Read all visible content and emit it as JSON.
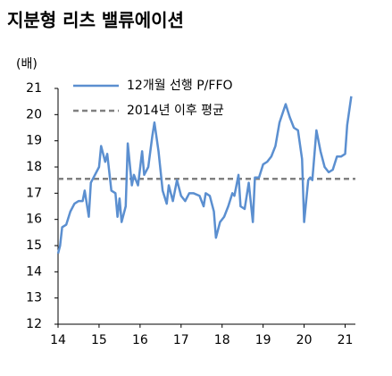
{
  "chart_data": {
    "type": "line",
    "title": "지분형 리츠 밸류에이션",
    "y_unit_label": "(배)",
    "xlim": [
      14,
      21.25
    ],
    "xticks": [
      14,
      15,
      16,
      17,
      18,
      19,
      20,
      21
    ],
    "ylim": [
      12,
      21
    ],
    "yticks": [
      12,
      13,
      14,
      15,
      16,
      17,
      18,
      19,
      20,
      21
    ],
    "grid": false,
    "legend": "upper-left",
    "series": [
      {
        "name": "12개월 선행 P/FFO",
        "color": "#5b8fd0",
        "x": [
          14.0,
          14.05,
          14.1,
          14.2,
          14.3,
          14.4,
          14.5,
          14.6,
          14.65,
          14.75,
          14.8,
          14.9,
          15.0,
          15.05,
          15.15,
          15.2,
          15.3,
          15.4,
          15.45,
          15.5,
          15.55,
          15.65,
          15.7,
          15.8,
          15.85,
          15.95,
          16.05,
          16.1,
          16.2,
          16.3,
          16.35,
          16.45,
          16.55,
          16.65,
          16.7,
          16.8,
          16.9,
          17.0,
          17.1,
          17.2,
          17.3,
          17.45,
          17.55,
          17.6,
          17.7,
          17.8,
          17.85,
          17.95,
          18.05,
          18.15,
          18.25,
          18.3,
          18.4,
          18.45,
          18.55,
          18.65,
          18.75,
          18.8,
          18.9,
          19.0,
          19.1,
          19.2,
          19.3,
          19.4,
          19.55,
          19.65,
          19.75,
          19.85,
          19.95,
          20.0,
          20.1,
          20.15,
          20.2,
          20.3,
          20.4,
          20.5,
          20.6,
          20.7,
          20.8,
          20.9,
          21.0,
          21.05,
          21.15
        ],
        "values": [
          14.7,
          15.0,
          15.7,
          15.8,
          16.3,
          16.6,
          16.7,
          16.7,
          17.1,
          16.1,
          17.4,
          17.7,
          18.0,
          18.8,
          18.2,
          18.5,
          17.1,
          17.0,
          16.1,
          16.8,
          15.9,
          16.5,
          18.9,
          17.3,
          17.7,
          17.3,
          18.6,
          17.7,
          18.0,
          19.2,
          19.7,
          18.6,
          17.1,
          16.6,
          17.3,
          16.7,
          17.5,
          16.9,
          16.7,
          17.0,
          17.0,
          16.9,
          16.5,
          17.0,
          16.9,
          16.3,
          15.3,
          15.9,
          16.1,
          16.5,
          17.0,
          16.9,
          17.7,
          16.5,
          16.4,
          17.4,
          15.9,
          17.6,
          17.6,
          18.1,
          18.2,
          18.4,
          18.8,
          19.7,
          20.4,
          19.9,
          19.5,
          19.4,
          18.3,
          15.9,
          17.5,
          17.6,
          17.5,
          19.4,
          18.6,
          18.0,
          17.8,
          17.9,
          18.4,
          18.4,
          18.5,
          19.6,
          20.7
        ]
      }
    ],
    "reference_lines": [
      {
        "name": "2014년 이후 평균",
        "value": 17.55,
        "color": "#808080",
        "dashed": true
      }
    ]
  }
}
